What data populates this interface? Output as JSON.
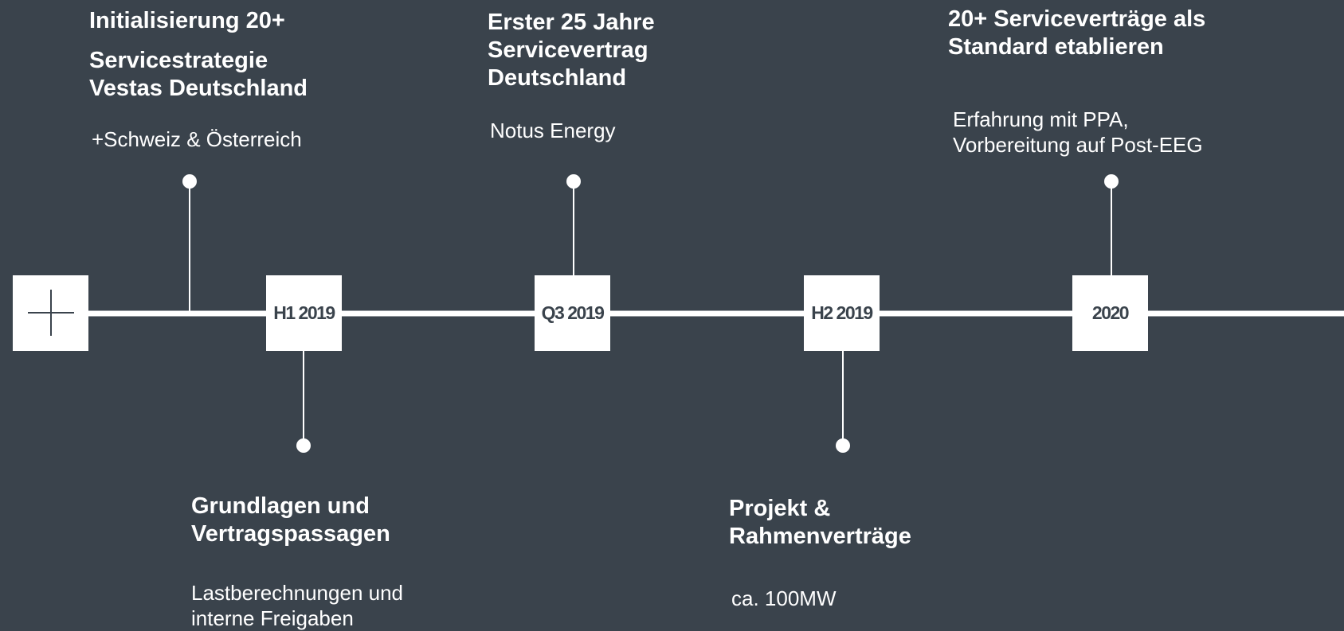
{
  "milestones": [
    "H1 2019",
    "Q3 2019",
    "H2 2019",
    "2020"
  ],
  "events": [
    {
      "title": [
        "Initialisierung 20+"
      ],
      "subtitle": [
        "Servicestrategie",
        "Vestas Deutschland"
      ],
      "text": [
        "+Schweiz & Österreich"
      ]
    },
    {
      "title": [
        "Erster 25 Jahre",
        "Servicevertrag",
        "Deutschland"
      ],
      "text": [
        "Notus Energy"
      ]
    },
    {
      "title": [
        "20+ Serviceverträge als",
        "Standard etablieren"
      ],
      "text": [
        "Erfahrung mit PPA,",
        "Vorbereitung auf Post-EEG"
      ]
    },
    {
      "title": [
        "Grundlagen und",
        "Vertragspassagen"
      ],
      "text": [
        "Lastberechnungen und",
        "interne Freigaben"
      ]
    },
    {
      "title": [
        "Projekt &",
        "Rahmenverträge"
      ],
      "text": [
        "ca. 100MW"
      ]
    }
  ]
}
